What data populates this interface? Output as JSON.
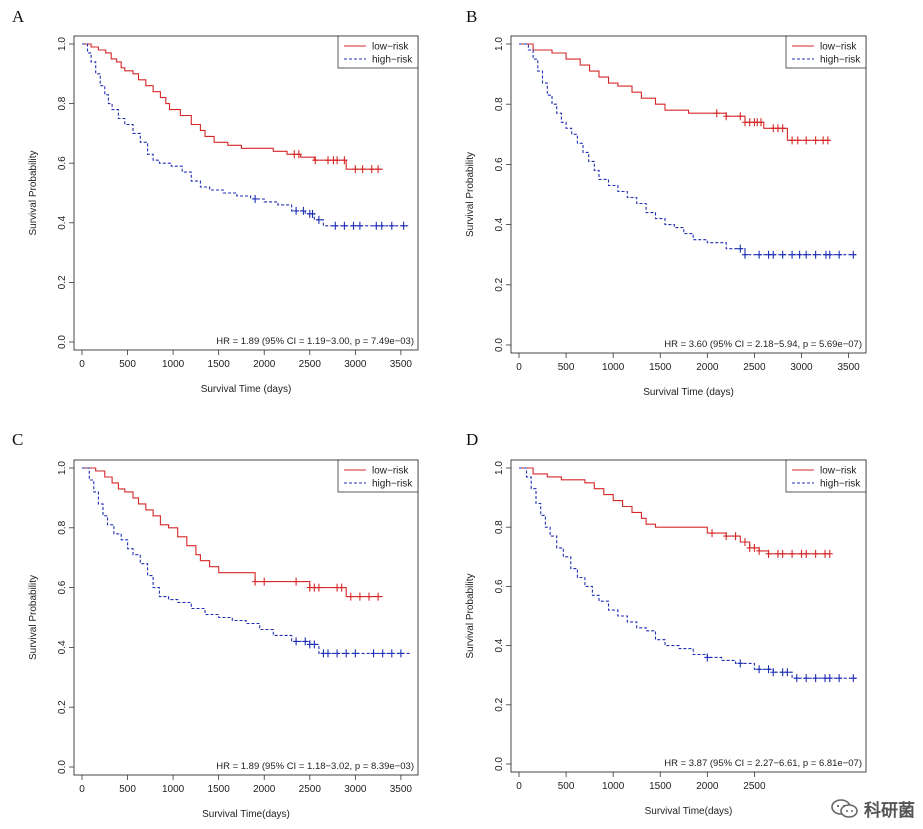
{
  "colors": {
    "low": "#d62728",
    "high": "#1f2fb5"
  },
  "chart_data": [
    {
      "type": "line",
      "panel": "A",
      "xlabel": "Survival Time (days)",
      "ylabel": "Survival Probability",
      "xlim": [
        0,
        3600
      ],
      "ylim": [
        0,
        1
      ],
      "xticks": [
        0,
        500,
        1000,
        1500,
        2000,
        2500,
        3000,
        3500
      ],
      "yticks": [
        "0.0",
        "0.2",
        "0.4",
        "0.6",
        "0.8",
        "1.0"
      ],
      "legend": "top-right",
      "annotation": "HR = 1.89 (95% CI = 1.19−3.00, p = 7.49e−03)",
      "series": [
        {
          "name": "low−risk",
          "style": "solid",
          "x": [
            0,
            100,
            180,
            260,
            320,
            380,
            430,
            470,
            560,
            620,
            700,
            780,
            860,
            920,
            960,
            1000,
            1080,
            1200,
            1300,
            1350,
            1450,
            1600,
            1750,
            1950,
            2100,
            2250,
            2400,
            2550,
            2750,
            2900,
            3300
          ],
          "y": [
            1.0,
            0.99,
            0.98,
            0.97,
            0.95,
            0.94,
            0.92,
            0.91,
            0.9,
            0.88,
            0.86,
            0.84,
            0.82,
            0.8,
            0.78,
            0.78,
            0.76,
            0.73,
            0.71,
            0.69,
            0.67,
            0.66,
            0.65,
            0.65,
            0.64,
            0.63,
            0.62,
            0.61,
            0.61,
            0.58,
            0.58
          ],
          "censor": [
            2330,
            2380,
            2560,
            2700,
            2760,
            2800,
            2880,
            3000,
            3080,
            3180,
            3250
          ]
        },
        {
          "name": "high−risk",
          "style": "dashed",
          "x": [
            0,
            60,
            100,
            150,
            200,
            250,
            290,
            330,
            400,
            470,
            560,
            640,
            720,
            780,
            850,
            980,
            1100,
            1200,
            1300,
            1400,
            1550,
            1700,
            1850,
            2000,
            2150,
            2300,
            2450,
            2550,
            2650,
            3600
          ],
          "y": [
            1.0,
            0.97,
            0.94,
            0.9,
            0.86,
            0.83,
            0.8,
            0.78,
            0.75,
            0.73,
            0.7,
            0.67,
            0.63,
            0.61,
            0.6,
            0.59,
            0.57,
            0.54,
            0.52,
            0.51,
            0.5,
            0.49,
            0.48,
            0.47,
            0.46,
            0.44,
            0.43,
            0.41,
            0.39,
            0.39
          ],
          "censor": [
            1900,
            2350,
            2430,
            2500,
            2530,
            2600,
            2780,
            2880,
            2980,
            3050,
            3230,
            3290,
            3400,
            3530
          ]
        }
      ]
    },
    {
      "type": "line",
      "panel": "B",
      "xlabel": "Survival Time (days)",
      "ylabel": "Survival Probability",
      "xlim": [
        0,
        3600
      ],
      "ylim": [
        0,
        1
      ],
      "xticks": [
        0,
        500,
        1000,
        1500,
        2000,
        2500,
        3000,
        3500
      ],
      "yticks": [
        "0.0",
        "0.2",
        "0.4",
        "0.6",
        "0.8",
        "1.0"
      ],
      "legend": "top-right",
      "annotation": "HR = 3.60 (95% CI = 2.18−5.94, p = 5.69e−07)",
      "series": [
        {
          "name": "low−risk",
          "style": "solid",
          "x": [
            0,
            150,
            350,
            500,
            650,
            750,
            850,
            950,
            1050,
            1200,
            1300,
            1450,
            1550,
            1700,
            1800,
            2000,
            2200,
            2400,
            2600,
            2850,
            3300
          ],
          "y": [
            1.0,
            0.98,
            0.97,
            0.95,
            0.93,
            0.91,
            0.89,
            0.87,
            0.86,
            0.84,
            0.82,
            0.8,
            0.78,
            0.78,
            0.77,
            0.77,
            0.76,
            0.74,
            0.72,
            0.68,
            0.68
          ],
          "censor": [
            2100,
            2200,
            2350,
            2400,
            2450,
            2500,
            2530,
            2570,
            2700,
            2750,
            2800,
            2900,
            2960,
            3050,
            3150,
            3230,
            3280
          ]
        },
        {
          "name": "high−risk",
          "style": "dashed",
          "x": [
            0,
            100,
            150,
            200,
            250,
            300,
            350,
            400,
            450,
            500,
            560,
            620,
            680,
            740,
            800,
            850,
            950,
            1050,
            1150,
            1250,
            1350,
            1450,
            1550,
            1650,
            1750,
            1850,
            2000,
            2200,
            2400,
            3600
          ],
          "y": [
            1.0,
            0.98,
            0.95,
            0.91,
            0.87,
            0.83,
            0.8,
            0.77,
            0.74,
            0.72,
            0.7,
            0.67,
            0.64,
            0.61,
            0.58,
            0.55,
            0.53,
            0.51,
            0.49,
            0.47,
            0.44,
            0.42,
            0.4,
            0.39,
            0.37,
            0.35,
            0.34,
            0.32,
            0.3,
            0.3
          ],
          "censor": [
            2350,
            2400,
            2550,
            2650,
            2700,
            2800,
            2900,
            2980,
            3050,
            3150,
            3260,
            3300,
            3400,
            3550
          ]
        }
      ]
    },
    {
      "type": "line",
      "panel": "C",
      "xlabel": "Survival Time(days)",
      "ylabel": "Survival Probability",
      "xlim": [
        0,
        3600
      ],
      "ylim": [
        0,
        1
      ],
      "xticks": [
        0,
        500,
        1000,
        1500,
        2000,
        2500,
        3000,
        3500
      ],
      "yticks": [
        "0.0",
        "0.2",
        "0.4",
        "0.6",
        "0.8",
        "1.0"
      ],
      "legend": "top-right",
      "annotation": "HR = 1.89 (95% CI = 1.18−3.02, p = 8.39e−03)",
      "series": [
        {
          "name": "low−risk",
          "style": "solid",
          "x": [
            0,
            150,
            250,
            330,
            400,
            470,
            560,
            620,
            700,
            780,
            860,
            950,
            1050,
            1150,
            1250,
            1300,
            1400,
            1500,
            1600,
            1900,
            2400,
            2500,
            2750,
            2900,
            3300
          ],
          "y": [
            1.0,
            0.99,
            0.97,
            0.95,
            0.93,
            0.92,
            0.9,
            0.88,
            0.86,
            0.84,
            0.81,
            0.8,
            0.77,
            0.74,
            0.71,
            0.69,
            0.67,
            0.65,
            0.65,
            0.62,
            0.62,
            0.6,
            0.6,
            0.57,
            0.57
          ],
          "censor": [
            1900,
            2000,
            2350,
            2500,
            2550,
            2600,
            2800,
            2850,
            2950,
            3050,
            3150,
            3250
          ]
        },
        {
          "name": "high−risk",
          "style": "dashed",
          "x": [
            0,
            80,
            130,
            180,
            230,
            280,
            350,
            430,
            500,
            560,
            640,
            720,
            780,
            850,
            950,
            1050,
            1200,
            1350,
            1500,
            1650,
            1800,
            1950,
            2100,
            2300,
            2500,
            2600,
            3600
          ],
          "y": [
            1.0,
            0.96,
            0.92,
            0.88,
            0.84,
            0.81,
            0.78,
            0.76,
            0.73,
            0.71,
            0.68,
            0.64,
            0.6,
            0.57,
            0.56,
            0.55,
            0.53,
            0.51,
            0.5,
            0.49,
            0.48,
            0.46,
            0.44,
            0.42,
            0.41,
            0.38,
            0.38
          ],
          "censor": [
            2350,
            2450,
            2500,
            2550,
            2650,
            2700,
            2800,
            2900,
            3000,
            3200,
            3300,
            3400,
            3500
          ]
        }
      ]
    },
    {
      "type": "line",
      "panel": "D",
      "xlabel": "Survival Time(days)",
      "ylabel": "Survival Probability",
      "xlim": [
        0,
        3600
      ],
      "ylim": [
        0,
        1
      ],
      "xticks": [
        0,
        500,
        1000,
        1500,
        2000,
        2500
      ],
      "yticks": [
        "0.0",
        "0.2",
        "0.4",
        "0.6",
        "0.8",
        "1.0"
      ],
      "legend": "top-right",
      "annotation": "HR = 3.87 (95% CI = 2.27−6.61, p = 6.81e−07)",
      "series": [
        {
          "name": "low−risk",
          "style": "solid",
          "x": [
            0,
            150,
            300,
            450,
            700,
            800,
            900,
            1000,
            1100,
            1200,
            1300,
            1350,
            1450,
            1650,
            2000,
            2200,
            2350,
            2450,
            2550,
            2650,
            3300
          ],
          "y": [
            1.0,
            0.98,
            0.97,
            0.96,
            0.95,
            0.93,
            0.91,
            0.89,
            0.87,
            0.85,
            0.83,
            0.81,
            0.8,
            0.8,
            0.78,
            0.77,
            0.75,
            0.73,
            0.72,
            0.71,
            0.71
          ],
          "censor": [
            2050,
            2200,
            2300,
            2400,
            2450,
            2500,
            2550,
            2650,
            2750,
            2800,
            2900,
            3000,
            3050,
            3150,
            3250,
            3300
          ]
        },
        {
          "name": "high−risk",
          "style": "dashed",
          "x": [
            0,
            80,
            130,
            180,
            230,
            280,
            330,
            400,
            470,
            550,
            620,
            700,
            780,
            850,
            950,
            1050,
            1150,
            1250,
            1350,
            1450,
            1550,
            1700,
            1850,
            2000,
            2150,
            2300,
            2500,
            2700,
            2900,
            3600
          ],
          "y": [
            1.0,
            0.97,
            0.93,
            0.88,
            0.84,
            0.8,
            0.77,
            0.73,
            0.7,
            0.66,
            0.63,
            0.6,
            0.57,
            0.55,
            0.52,
            0.5,
            0.48,
            0.46,
            0.45,
            0.42,
            0.4,
            0.39,
            0.37,
            0.36,
            0.35,
            0.34,
            0.32,
            0.31,
            0.29,
            0.29
          ],
          "censor": [
            2000,
            2350,
            2550,
            2650,
            2700,
            2800,
            2850,
            2950,
            3050,
            3150,
            3250,
            3300,
            3400,
            3550
          ]
        }
      ]
    }
  ],
  "watermark": "科研菌"
}
